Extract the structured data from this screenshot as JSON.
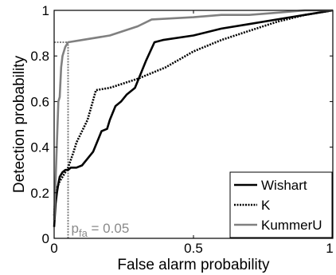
{
  "chart_data": {
    "type": "line",
    "title": "",
    "xlabel": "False alarm probability",
    "ylabel": "Detection probability",
    "xlim": [
      0,
      1
    ],
    "ylim": [
      0,
      1
    ],
    "x_ticks": [
      0,
      0.5,
      1
    ],
    "x_tick_labels": [
      "0",
      "0.5",
      "1"
    ],
    "y_ticks": [
      0,
      0.2,
      0.4,
      0.6,
      0.8,
      1
    ],
    "y_tick_labels": [
      "0",
      "0.2",
      "0.4",
      "0.6",
      "0.8",
      "1"
    ],
    "grid": false,
    "legend": {
      "placement": "bottom-right"
    },
    "series": [
      {
        "name": "Wishart",
        "color": "#000000",
        "style": "solid",
        "x": [
          0,
          0.005,
          0.01,
          0.015,
          0.02,
          0.03,
          0.04,
          0.05,
          0.06,
          0.08,
          0.1,
          0.12,
          0.14,
          0.16,
          0.17,
          0.19,
          0.2,
          0.22,
          0.24,
          0.26,
          0.29,
          0.31,
          0.33,
          0.36,
          0.39,
          0.5,
          0.6,
          0.7,
          0.8,
          0.9,
          1.0
        ],
        "y": [
          0.05,
          0.15,
          0.2,
          0.24,
          0.27,
          0.29,
          0.3,
          0.3,
          0.31,
          0.31,
          0.32,
          0.35,
          0.38,
          0.44,
          0.47,
          0.48,
          0.52,
          0.58,
          0.6,
          0.63,
          0.66,
          0.72,
          0.78,
          0.86,
          0.87,
          0.89,
          0.92,
          0.94,
          0.96,
          0.98,
          1.0
        ]
      },
      {
        "name": "K",
        "color": "#000000",
        "style": "dotted",
        "x": [
          0,
          0.005,
          0.01,
          0.02,
          0.03,
          0.04,
          0.05,
          0.07,
          0.08,
          0.1,
          0.12,
          0.15,
          0.2,
          0.25,
          0.3,
          0.4,
          0.5,
          0.6,
          0.7,
          0.8,
          0.9,
          1.0
        ],
        "y": [
          0.1,
          0.2,
          0.22,
          0.25,
          0.27,
          0.29,
          0.31,
          0.38,
          0.42,
          0.47,
          0.52,
          0.65,
          0.66,
          0.68,
          0.7,
          0.75,
          0.82,
          0.87,
          0.91,
          0.95,
          0.98,
          1.0
        ]
      },
      {
        "name": "KummerU",
        "color": "#808080",
        "style": "solid",
        "x": [
          0,
          0.005,
          0.01,
          0.015,
          0.02,
          0.025,
          0.03,
          0.04,
          0.05,
          0.1,
          0.2,
          0.3,
          0.35,
          0.5,
          0.6,
          0.7,
          0.8,
          0.9,
          1.0
        ],
        "y": [
          0.08,
          0.25,
          0.42,
          0.6,
          0.62,
          0.75,
          0.8,
          0.84,
          0.86,
          0.87,
          0.89,
          0.93,
          0.96,
          0.97,
          0.98,
          0.98,
          0.99,
          1.0,
          1.0
        ]
      }
    ],
    "annotation": {
      "label": "p",
      "subscript": "fa",
      "suffix": " = 0.05",
      "x": 0.05,
      "detection_at_pfa": 0.86,
      "color": "#808080"
    }
  }
}
